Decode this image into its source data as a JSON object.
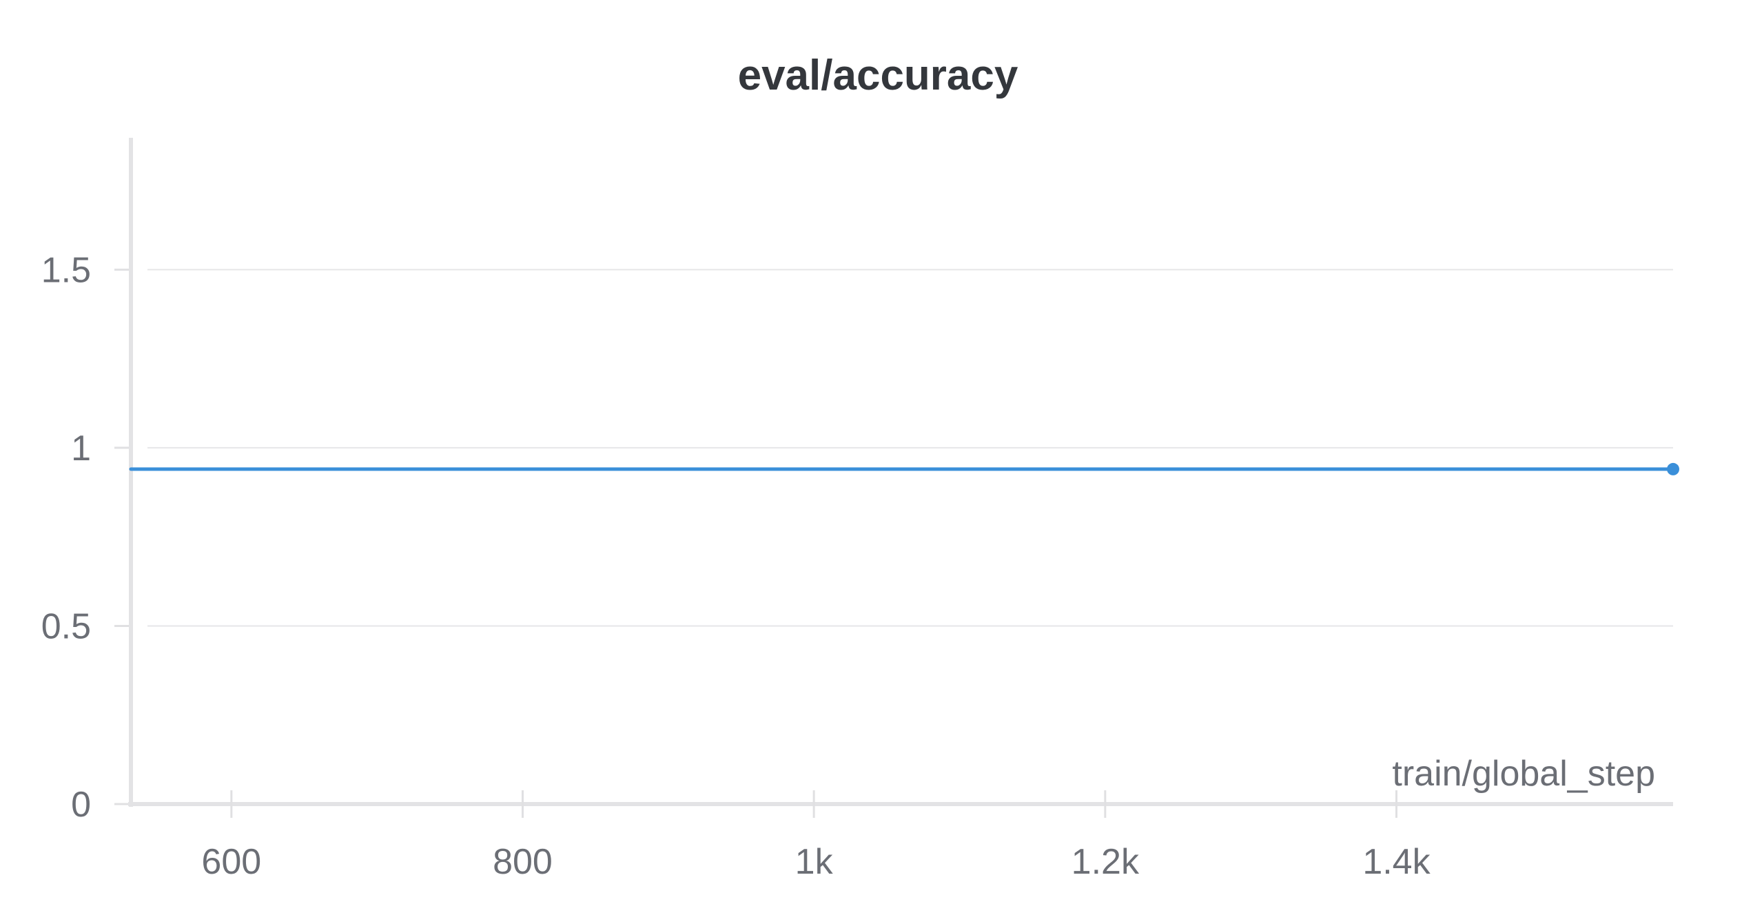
{
  "chart_data": {
    "type": "line",
    "title": "eval/accuracy",
    "xlabel": "train/global_step",
    "ylabel": "",
    "xlim": [
      531,
      1590
    ],
    "ylim": [
      0,
      1.87
    ],
    "x_ticks": [
      {
        "value": 600,
        "label": "600"
      },
      {
        "value": 800,
        "label": "800"
      },
      {
        "value": 1000,
        "label": "1k"
      },
      {
        "value": 1200,
        "label": "1.2k"
      },
      {
        "value": 1400,
        "label": "1.4k"
      }
    ],
    "y_ticks": [
      {
        "value": 0,
        "label": "0"
      },
      {
        "value": 0.5,
        "label": "0.5"
      },
      {
        "value": 1,
        "label": "1"
      },
      {
        "value": 1.5,
        "label": "1.5"
      }
    ],
    "grid": true,
    "series": [
      {
        "color": "#3a8fd9",
        "points": [
          {
            "x": 531,
            "y": 0.94
          },
          {
            "x": 1590,
            "y": 0.94
          }
        ],
        "end_marker_x": 1590
      }
    ]
  }
}
